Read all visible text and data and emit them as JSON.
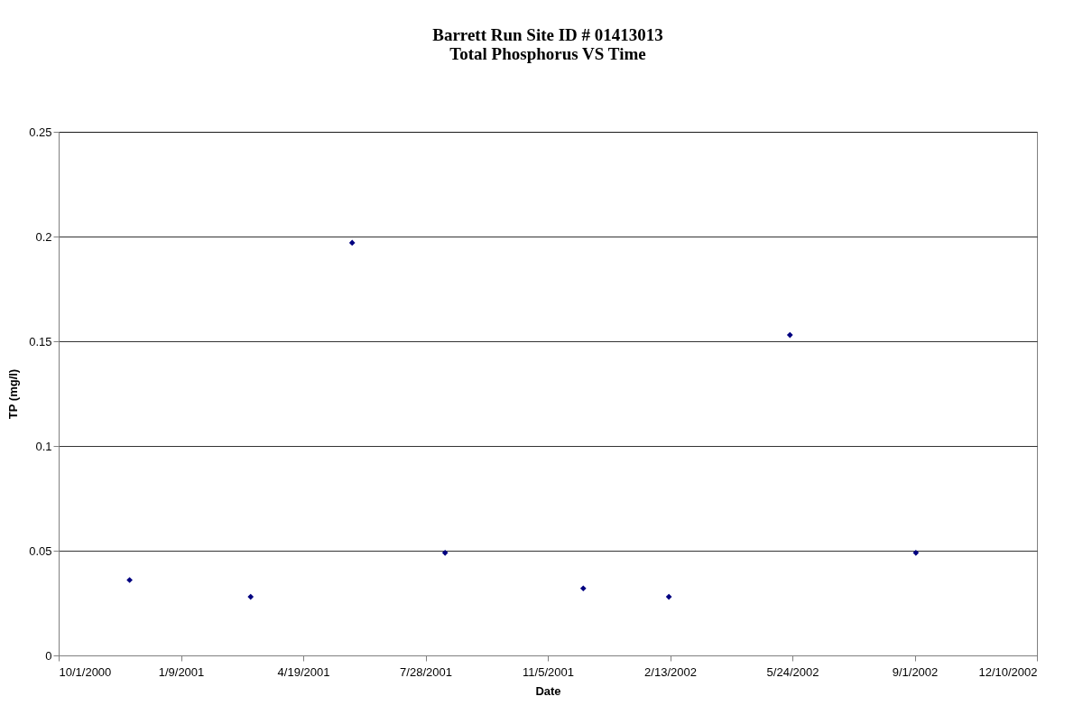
{
  "chart_data": {
    "type": "scatter",
    "title": "Barrett Run Site ID # 01413013",
    "subtitle": "Total Phosphorus VS Time",
    "xlabel": "Date",
    "ylabel": "TP (mg/l)",
    "x": [
      "2000-11-28",
      "2001-03-07",
      "2001-05-29",
      "2001-08-13",
      "2001-12-04",
      "2002-02-12",
      "2002-05-22",
      "2002-09-02"
    ],
    "values": [
      0.036,
      0.028,
      0.197,
      0.049,
      0.032,
      0.028,
      0.153,
      0.049
    ],
    "color": "#000080",
    "marker": "diamond",
    "xlim": [
      "2000-10-01",
      "2002-12-10"
    ],
    "xticks": [
      {
        "value": "2000-10-01",
        "label": "10/1/2000"
      },
      {
        "value": "2001-01-09",
        "label": "1/9/2001"
      },
      {
        "value": "2001-04-19",
        "label": "4/19/2001"
      },
      {
        "value": "2001-07-28",
        "label": "7/28/2001"
      },
      {
        "value": "2001-11-05",
        "label": "11/5/2001"
      },
      {
        "value": "2002-02-13",
        "label": "2/13/2002"
      },
      {
        "value": "2002-05-24",
        "label": "5/24/2002"
      },
      {
        "value": "2002-09-01",
        "label": "9/1/2002"
      },
      {
        "value": "2002-12-10",
        "label": "12/10/2002"
      }
    ],
    "ylim": [
      0,
      0.25
    ],
    "yticks": [
      0,
      0.05,
      0.1,
      0.15,
      0.2,
      0.25
    ],
    "grid": "y"
  }
}
